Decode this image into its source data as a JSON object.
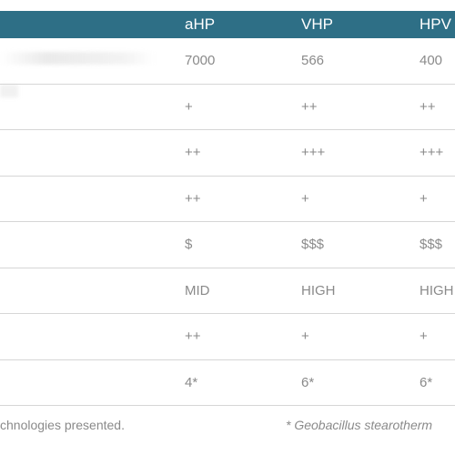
{
  "table": {
    "columns": [
      "aHP",
      "VHP",
      "HPV"
    ],
    "rows": [
      [
        "7000",
        "566",
        "400"
      ],
      [
        "+",
        "++",
        "++"
      ],
      [
        "++",
        "+++",
        "+++"
      ],
      [
        "++",
        "+",
        "+"
      ],
      [
        "$",
        "$$$",
        "$$$"
      ],
      [
        "MID",
        "HIGH",
        "HIGH"
      ],
      [
        "++",
        "+",
        "+"
      ],
      [
        "4*",
        "6*",
        "6*"
      ]
    ]
  },
  "footer": {
    "left": "chnologies presented.",
    "right": "* Geobacillus stearotherm"
  },
  "colors": {
    "header_bg": "#2e6f86",
    "header_text": "#ffffff",
    "body_text": "#8a8a8a",
    "row_divider": "#d6d6d6"
  }
}
